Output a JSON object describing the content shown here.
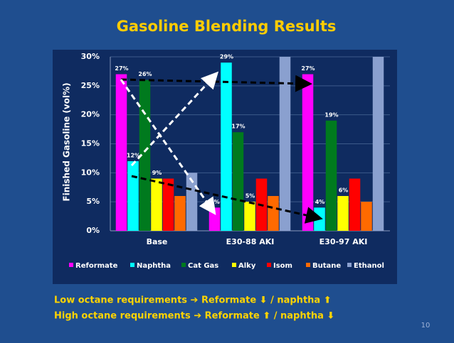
{
  "chart_data": {
    "type": "bar",
    "title": "Gasoline Blending Results",
    "y_label": "Finished Gasoline (vol%)",
    "categories": [
      "Base",
      "E30-88 AKI",
      "E30-97 AKI"
    ],
    "series": [
      {
        "name": "Reformate",
        "color": "#ff00ff",
        "values": [
          27,
          4,
          27
        ],
        "value_labels": [
          "27%",
          "4%",
          "27%"
        ]
      },
      {
        "name": "Naphtha",
        "color": "#00ffff",
        "values": [
          12,
          29,
          4
        ],
        "value_labels": [
          "12%",
          "29%",
          "4%"
        ]
      },
      {
        "name": "Cat Gas",
        "color": "#007a1e",
        "values": [
          26,
          17,
          19
        ],
        "value_labels": [
          "26%",
          "17%",
          "19%"
        ]
      },
      {
        "name": "Alky",
        "color": "#ffff00",
        "values": [
          9,
          5,
          6
        ],
        "value_labels": [
          "9%",
          "5%",
          "6%"
        ]
      },
      {
        "name": "Isom",
        "color": "#ff0000",
        "values": [
          9,
          9,
          9
        ]
      },
      {
        "name": "Butane",
        "color": "#ff6a00",
        "values": [
          6,
          6,
          5
        ]
      },
      {
        "name": "Ethanol",
        "color": "#8aa0cf",
        "values": [
          10,
          30,
          30
        ]
      }
    ],
    "ylim": [
      0,
      30
    ],
    "yticks": [
      {
        "value": 0,
        "label": "0%"
      },
      {
        "value": 5,
        "label": "5%"
      },
      {
        "value": 10,
        "label": "10%"
      },
      {
        "value": 15,
        "label": "15%"
      },
      {
        "value": 20,
        "label": "20%"
      },
      {
        "value": 25,
        "label": "25%"
      },
      {
        "value": 30,
        "label": "30%"
      }
    ],
    "grid": true,
    "notes": [
      "Low octane requirements ➔ Reformate ⬇ / naphtha ⬆",
      "High octane requirements ➔ Reformate ⬆ / naphtha ⬇"
    ],
    "page_number": "10"
  }
}
